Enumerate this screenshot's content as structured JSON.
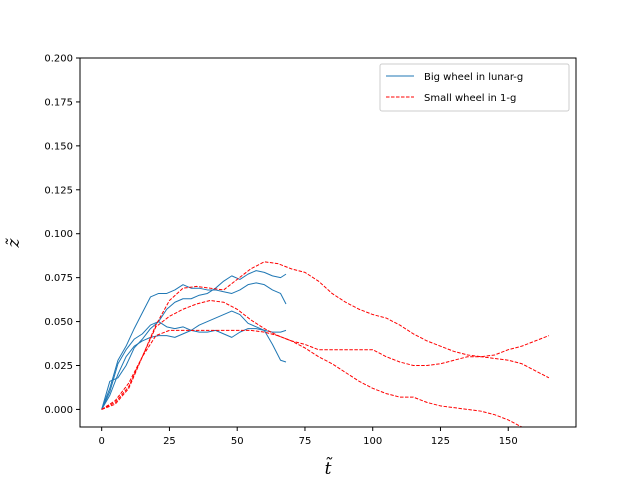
{
  "chart_data": {
    "type": "line",
    "title": "",
    "xlabel": "t̃",
    "ylabel": "z̃",
    "xlim": [
      -8,
      175
    ],
    "ylim": [
      -0.01,
      0.2
    ],
    "xticks": [
      0,
      25,
      50,
      75,
      100,
      125,
      150
    ],
    "yticks": [
      0.0,
      0.025,
      0.05,
      0.075,
      0.1,
      0.125,
      0.15,
      0.175,
      0.2
    ],
    "ytick_labels": [
      "0.000",
      "0.025",
      "0.050",
      "0.075",
      "0.100",
      "0.125",
      "0.150",
      "0.175",
      "0.200"
    ],
    "grid": false,
    "legend": {
      "placement": "top-right",
      "entries": [
        "Big wheel in lunar-g",
        "Small wheel in 1-g"
      ]
    },
    "colors": {
      "big_wheel": "#1f77b4",
      "small_wheel": "#ff0000"
    },
    "series": [
      {
        "name": "Big wheel in lunar-g",
        "style": "solid",
        "x": [
          0,
          3,
          6,
          9,
          12,
          15,
          18,
          21,
          24,
          27,
          30,
          33,
          36,
          39,
          42,
          45,
          48,
          51,
          54,
          57,
          60,
          63,
          66,
          68
        ],
        "y": [
          0.0,
          0.012,
          0.028,
          0.036,
          0.046,
          0.055,
          0.064,
          0.066,
          0.066,
          0.068,
          0.071,
          0.069,
          0.069,
          0.068,
          0.068,
          0.067,
          0.066,
          0.068,
          0.071,
          0.072,
          0.071,
          0.068,
          0.066,
          0.06
        ]
      },
      {
        "name": "Big wheel in lunar-g",
        "style": "solid",
        "x": [
          0,
          3,
          6,
          9,
          12,
          15,
          18,
          21,
          24,
          27,
          30,
          33,
          36,
          39,
          42,
          45,
          48,
          51,
          54,
          57,
          60,
          63,
          66,
          68
        ],
        "y": [
          0.0,
          0.016,
          0.018,
          0.025,
          0.035,
          0.04,
          0.046,
          0.05,
          0.057,
          0.061,
          0.063,
          0.063,
          0.065,
          0.066,
          0.069,
          0.073,
          0.076,
          0.074,
          0.077,
          0.079,
          0.078,
          0.076,
          0.075,
          0.077
        ]
      },
      {
        "name": "Big wheel in lunar-g",
        "style": "solid",
        "x": [
          0,
          3,
          6,
          9,
          12,
          15,
          18,
          21,
          24,
          27,
          30,
          33,
          36,
          39,
          42,
          45,
          48,
          51,
          54,
          57,
          60,
          63,
          66,
          68
        ],
        "y": [
          0.0,
          0.01,
          0.026,
          0.034,
          0.04,
          0.043,
          0.048,
          0.05,
          0.047,
          0.046,
          0.047,
          0.045,
          0.048,
          0.05,
          0.052,
          0.054,
          0.056,
          0.054,
          0.049,
          0.047,
          0.045,
          0.037,
          0.028,
          0.027
        ]
      },
      {
        "name": "Big wheel in lunar-g",
        "style": "solid",
        "x": [
          0,
          3,
          6,
          9,
          12,
          15,
          18,
          21,
          24,
          27,
          30,
          33,
          36,
          39,
          42,
          45,
          48,
          51,
          54,
          57,
          60,
          63,
          66,
          68
        ],
        "y": [
          0.0,
          0.008,
          0.02,
          0.03,
          0.036,
          0.039,
          0.041,
          0.042,
          0.042,
          0.041,
          0.043,
          0.045,
          0.044,
          0.044,
          0.045,
          0.043,
          0.041,
          0.044,
          0.046,
          0.046,
          0.045,
          0.044,
          0.044,
          0.045
        ]
      },
      {
        "name": "Small wheel in 1-g",
        "style": "dashed",
        "x": [
          0,
          5,
          10,
          15,
          20,
          25,
          30,
          35,
          40,
          45,
          50,
          55,
          60,
          65,
          70,
          75,
          80,
          85,
          90,
          95,
          100,
          105,
          110,
          115,
          120,
          125,
          130,
          135,
          140,
          145,
          150,
          155,
          160,
          165
        ],
        "y": [
          0.0,
          0.005,
          0.015,
          0.03,
          0.048,
          0.062,
          0.069,
          0.07,
          0.069,
          0.068,
          0.074,
          0.08,
          0.084,
          0.083,
          0.08,
          0.078,
          0.073,
          0.066,
          0.061,
          0.057,
          0.054,
          0.052,
          0.048,
          0.043,
          0.039,
          0.036,
          0.033,
          0.031,
          0.03,
          0.031,
          0.034,
          0.036,
          0.039,
          0.042
        ]
      },
      {
        "name": "Small wheel in 1-g",
        "style": "dashed",
        "x": [
          0,
          5,
          10,
          15,
          20,
          25,
          30,
          35,
          40,
          45,
          50,
          55,
          60,
          65,
          70,
          75,
          80,
          85,
          90,
          95,
          100,
          105,
          110,
          115,
          120,
          125,
          130,
          135,
          140,
          145,
          150,
          155,
          160,
          165
        ],
        "y": [
          0.0,
          0.003,
          0.012,
          0.03,
          0.047,
          0.053,
          0.057,
          0.06,
          0.062,
          0.061,
          0.057,
          0.051,
          0.046,
          0.042,
          0.039,
          0.037,
          0.034,
          0.034,
          0.034,
          0.034,
          0.034,
          0.03,
          0.027,
          0.025,
          0.025,
          0.026,
          0.028,
          0.03,
          0.03,
          0.029,
          0.028,
          0.026,
          0.022,
          0.018
        ]
      },
      {
        "name": "Small wheel in 1-g",
        "style": "dashed",
        "x": [
          0,
          5,
          10,
          15,
          20,
          25,
          30,
          35,
          40,
          45,
          50,
          55,
          60,
          65,
          70,
          75,
          80,
          85,
          90,
          95,
          100,
          105,
          110,
          115,
          120,
          125,
          130,
          135,
          140,
          145,
          150,
          155
        ],
        "y": [
          0.0,
          0.004,
          0.013,
          0.03,
          0.042,
          0.045,
          0.045,
          0.045,
          0.045,
          0.045,
          0.045,
          0.045,
          0.044,
          0.042,
          0.039,
          0.035,
          0.03,
          0.026,
          0.021,
          0.016,
          0.012,
          0.009,
          0.007,
          0.007,
          0.004,
          0.002,
          0.001,
          0.0,
          -0.001,
          -0.003,
          -0.006,
          -0.01
        ]
      }
    ]
  }
}
